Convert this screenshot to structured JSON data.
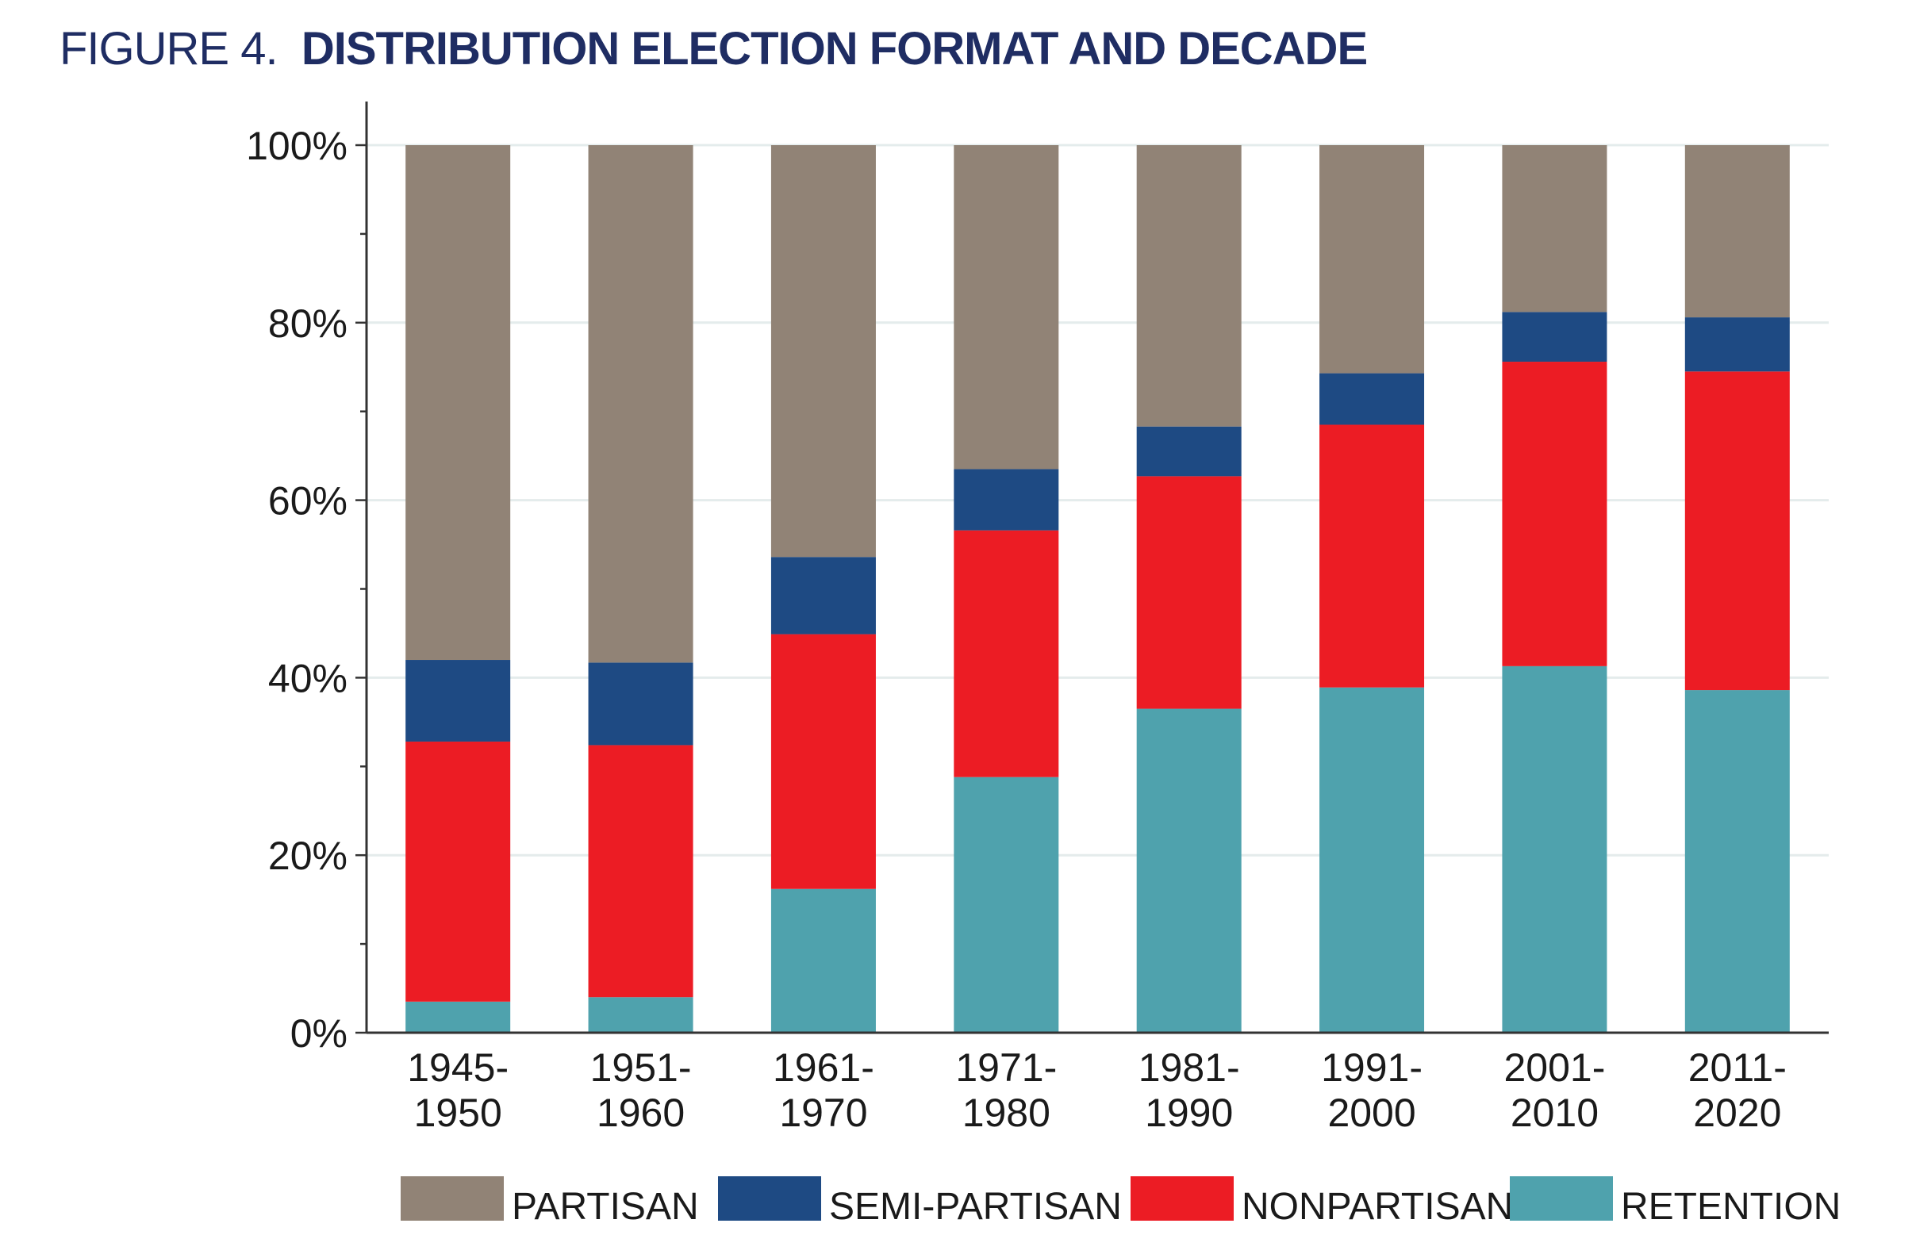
{
  "figure": {
    "label": "FIGURE 4.",
    "title": "DISTRIBUTION ELECTION FORMAT AND DECADE"
  },
  "chart_data": {
    "type": "bar",
    "stacked": true,
    "categories": [
      [
        "1945-",
        "1950"
      ],
      [
        "1951-",
        "1960"
      ],
      [
        "1961-",
        "1970"
      ],
      [
        "1971-",
        "1980"
      ],
      [
        "1981-",
        "1990"
      ],
      [
        "1991-",
        "2000"
      ],
      [
        "2001-",
        "2010"
      ],
      [
        "2011-",
        "2020"
      ]
    ],
    "series": [
      {
        "name": "RETENTION",
        "color": "#4fa2ad",
        "values": [
          3.5,
          4.0,
          16.2,
          28.8,
          36.5,
          38.9,
          41.3,
          38.6
        ]
      },
      {
        "name": "NONPARTISAN",
        "color": "#ec1c24",
        "values": [
          29.3,
          28.4,
          28.7,
          27.8,
          26.2,
          29.6,
          34.3,
          35.9
        ]
      },
      {
        "name": "SEMI-PARTISAN",
        "color": "#1e4a83",
        "values": [
          9.2,
          9.3,
          8.7,
          6.9,
          5.6,
          5.8,
          5.6,
          6.1
        ]
      },
      {
        "name": "PARTISAN",
        "color": "#918376",
        "values": [
          58.0,
          58.3,
          46.4,
          36.5,
          31.7,
          25.7,
          18.8,
          19.4
        ]
      }
    ],
    "legend_order": [
      "PARTISAN",
      "SEMI-PARTISAN",
      "NONPARTISAN",
      "RETENTION"
    ],
    "y_ticks": [
      "0%",
      "20%",
      "40%",
      "60%",
      "80%",
      "100%"
    ],
    "ylim": [
      0,
      100
    ],
    "grid": true,
    "legend_position": "bottom",
    "xlabel": "",
    "ylabel": ""
  }
}
